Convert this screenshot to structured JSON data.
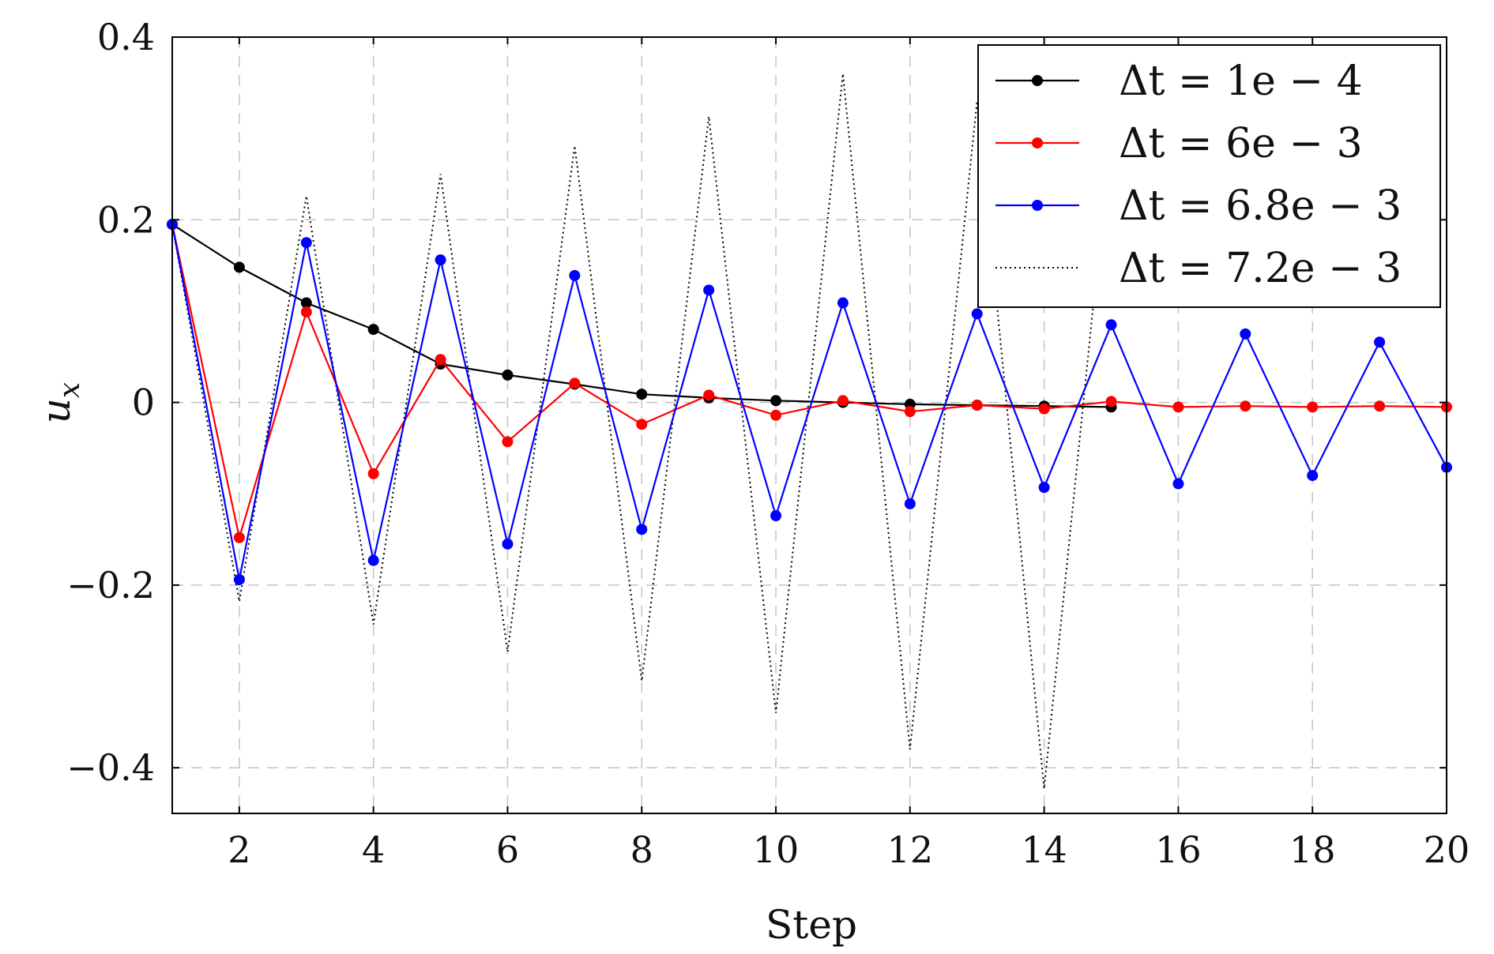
{
  "chart_data": {
    "type": "line",
    "title": "",
    "xlabel": "Step",
    "ylabel": "u_x",
    "xlim": [
      1,
      20
    ],
    "ylim": [
      -0.45,
      0.4
    ],
    "xticks": [
      2,
      4,
      6,
      8,
      10,
      12,
      14,
      16,
      18,
      20
    ],
    "xtick_labels": [
      "2",
      "4",
      "6",
      "8",
      "10",
      "12",
      "14",
      "16",
      "18",
      "20"
    ],
    "yticks": [
      -0.4,
      -0.2,
      0,
      0.2,
      0.4
    ],
    "ytick_labels": [
      "−0.4",
      "−0.2",
      "0",
      "0.2",
      "0.4"
    ],
    "grid": true,
    "legend_position": "top-right",
    "series": [
      {
        "name": "Δt = 1e − 4",
        "color": "#000000",
        "style": "solid-markers",
        "x": [
          1,
          2,
          3,
          4,
          5,
          6,
          7,
          8,
          9,
          10,
          11,
          12,
          13,
          14,
          15
        ],
        "y": [
          0.195,
          0.148,
          0.109,
          0.08,
          0.042,
          0.03,
          0.02,
          0.009,
          0.005,
          0.002,
          0.0,
          -0.002,
          -0.003,
          -0.004,
          -0.005
        ]
      },
      {
        "name": "Δt = 6e − 3",
        "color": "#ff0000",
        "style": "solid-markers",
        "x": [
          1,
          2,
          3,
          4,
          5,
          6,
          7,
          8,
          9,
          10,
          11,
          12,
          13,
          14,
          15,
          16,
          17,
          18,
          19,
          20
        ],
        "y": [
          0.195,
          -0.148,
          0.099,
          -0.078,
          0.047,
          -0.043,
          0.021,
          -0.024,
          0.008,
          -0.014,
          0.002,
          -0.01,
          -0.003,
          -0.007,
          0.001,
          -0.005,
          -0.004,
          -0.005,
          -0.004,
          -0.005
        ]
      },
      {
        "name": "Δt = 6.8e − 3",
        "color": "#0000ff",
        "style": "solid-markers",
        "x": [
          1,
          2,
          3,
          4,
          5,
          6,
          7,
          8,
          9,
          10,
          11,
          12,
          13,
          14,
          15,
          16,
          17,
          18,
          19,
          20
        ],
        "y": [
          0.195,
          -0.194,
          0.175,
          -0.173,
          0.156,
          -0.155,
          0.139,
          -0.139,
          0.123,
          -0.124,
          0.109,
          -0.111,
          0.097,
          -0.093,
          0.085,
          -0.089,
          0.075,
          -0.08,
          0.066,
          -0.071
        ]
      },
      {
        "name": "Δt = 7.2e − 3",
        "color": "#000000",
        "style": "dotted",
        "x": [
          1,
          2,
          3,
          4,
          5,
          6,
          7,
          8,
          9,
          10,
          11,
          12,
          13,
          14,
          15
        ],
        "y": [
          0.195,
          -0.218,
          0.226,
          -0.243,
          0.25,
          -0.273,
          0.281,
          -0.305,
          0.313,
          -0.34,
          0.36,
          -0.38,
          0.33,
          -0.423,
          0.3
        ]
      }
    ]
  }
}
